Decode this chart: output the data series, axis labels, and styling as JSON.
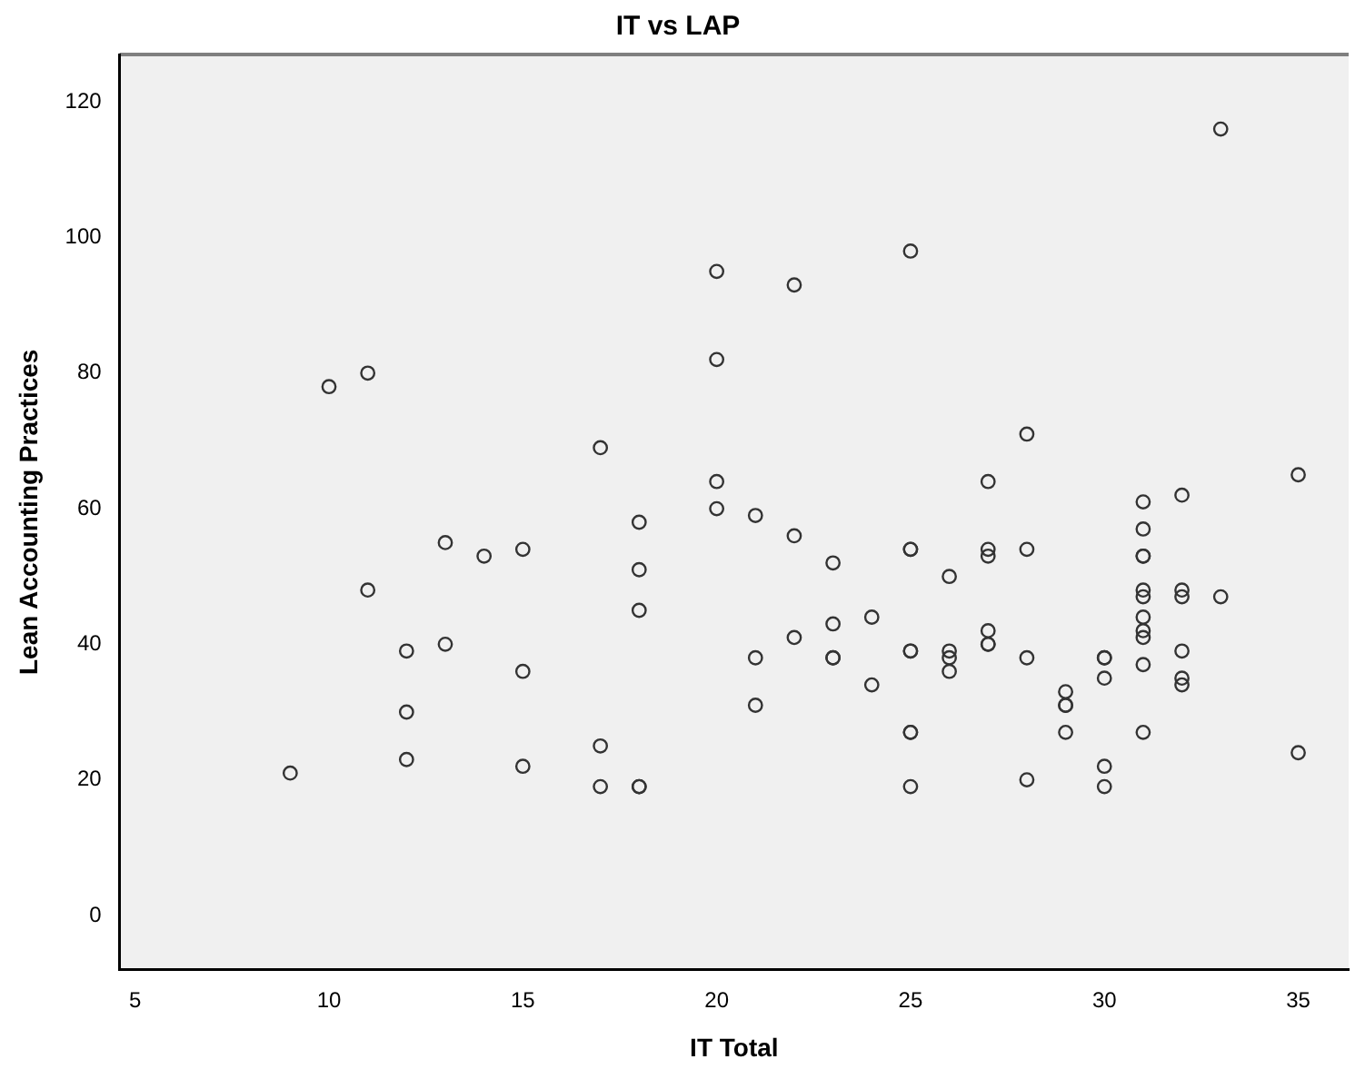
{
  "chart_data": {
    "type": "scatter",
    "title": "IT vs LAP",
    "xlabel": "IT Total",
    "ylabel": "Lean Accounting Practices",
    "xlim": [
      4.6,
      36.3
    ],
    "xticks": [
      5,
      10,
      15,
      20,
      25,
      30,
      35
    ],
    "ylim": [
      -8,
      127
    ],
    "yticks": [
      0,
      20,
      40,
      60,
      80,
      100,
      120
    ],
    "grid": false,
    "legend": false,
    "marker": "circle",
    "series": [
      {
        "color": "#333333",
        "x": [
          9,
          10,
          11,
          11,
          12,
          12,
          12,
          13,
          13,
          14,
          15,
          15,
          15,
          17,
          17,
          17,
          18,
          18,
          18,
          18,
          18,
          20,
          20,
          20,
          20,
          21,
          21,
          21,
          22,
          22,
          22,
          23,
          23,
          23,
          23,
          24,
          24,
          25,
          25,
          25,
          25,
          25,
          25,
          25,
          25,
          26,
          26,
          26,
          26,
          27,
          27,
          27,
          27,
          27,
          27,
          28,
          28,
          28,
          28,
          29,
          29,
          29,
          29,
          30,
          30,
          30,
          30,
          30,
          31,
          31,
          31,
          31,
          31,
          31,
          31,
          31,
          31,
          31,
          31,
          32,
          32,
          32,
          32,
          32,
          32,
          33,
          33,
          35,
          35
        ],
        "values": [
          21,
          78,
          80,
          48,
          39,
          30,
          23,
          55,
          40,
          53,
          54,
          36,
          22,
          69,
          25,
          19,
          58,
          51,
          45,
          19,
          19,
          95,
          82,
          64,
          60,
          59,
          38,
          31,
          93,
          56,
          41,
          52,
          43,
          38,
          38,
          44,
          34,
          98,
          54,
          54,
          39,
          39,
          27,
          27,
          19,
          50,
          39,
          38,
          36,
          64,
          54,
          53,
          42,
          40,
          40,
          71,
          54,
          38,
          20,
          33,
          31,
          31,
          27,
          38,
          38,
          35,
          22,
          19,
          61,
          57,
          53,
          53,
          48,
          47,
          44,
          42,
          41,
          37,
          27,
          62,
          48,
          47,
          39,
          35,
          34,
          116,
          47,
          65,
          24
        ]
      }
    ]
  }
}
